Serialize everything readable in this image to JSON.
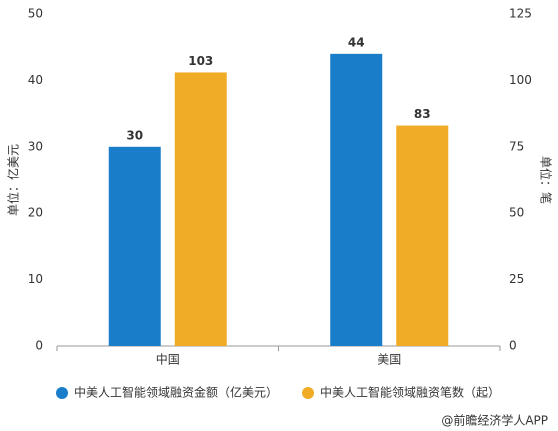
{
  "chart_data": {
    "type": "bar",
    "categories": [
      "中国",
      "美国"
    ],
    "series": [
      {
        "name": "中美人工智能领域融资金额（亿美元）",
        "color": "#1a7dc9",
        "values": [
          30,
          44
        ]
      },
      {
        "name": "中美人工智能领域融资笔数（起）",
        "color": "#f0ac27",
        "values": [
          103,
          83
        ],
        "axis": "y2"
      }
    ],
    "ylabel": "单位：亿美元",
    "y2label": "单位：笔",
    "ylim": [
      0,
      50
    ],
    "yticks": [
      0,
      10,
      20,
      30,
      40,
      50
    ],
    "y2lim": [
      0,
      125
    ],
    "y2ticks": [
      0,
      25,
      50,
      75,
      100,
      125
    ],
    "grid": false,
    "legend": "bottom",
    "source": "@前瞻经济学人APP"
  }
}
